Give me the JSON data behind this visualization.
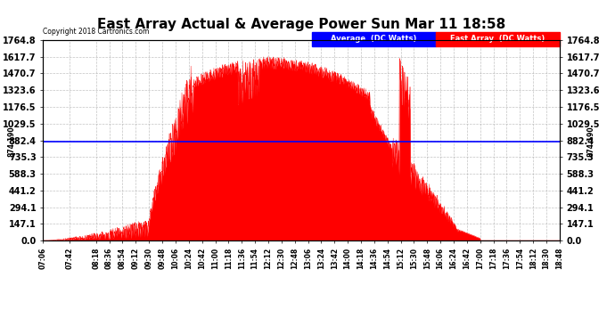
{
  "title": "East Array Actual & Average Power Sun Mar 11 18:58",
  "copyright": "Copyright 2018 Cartronics.com",
  "average_value": 874.19,
  "y_max": 1764.8,
  "y_min": 0.0,
  "y_ticks": [
    0.0,
    147.1,
    294.1,
    441.2,
    588.3,
    735.3,
    882.4,
    1029.5,
    1176.5,
    1323.6,
    1470.7,
    1617.7,
    1764.8
  ],
  "legend_avg_label": "Average  (DC Watts)",
  "legend_east_label": "East Array  (DC Watts)",
  "avg_color": "#0000ff",
  "east_color": "#ff0000",
  "background_color": "#ffffff",
  "grid_color": "#aaaaaa",
  "title_fontsize": 11,
  "time_labels": [
    "07:06",
    "07:42",
    "08:18",
    "08:36",
    "08:54",
    "09:12",
    "09:30",
    "09:48",
    "10:06",
    "10:24",
    "10:42",
    "11:00",
    "11:18",
    "11:36",
    "11:54",
    "12:12",
    "12:30",
    "12:48",
    "13:06",
    "13:24",
    "13:42",
    "14:00",
    "14:18",
    "14:36",
    "14:54",
    "15:12",
    "15:30",
    "15:48",
    "16:06",
    "16:24",
    "16:42",
    "17:00",
    "17:18",
    "17:36",
    "17:54",
    "18:12",
    "18:30",
    "18:48"
  ]
}
